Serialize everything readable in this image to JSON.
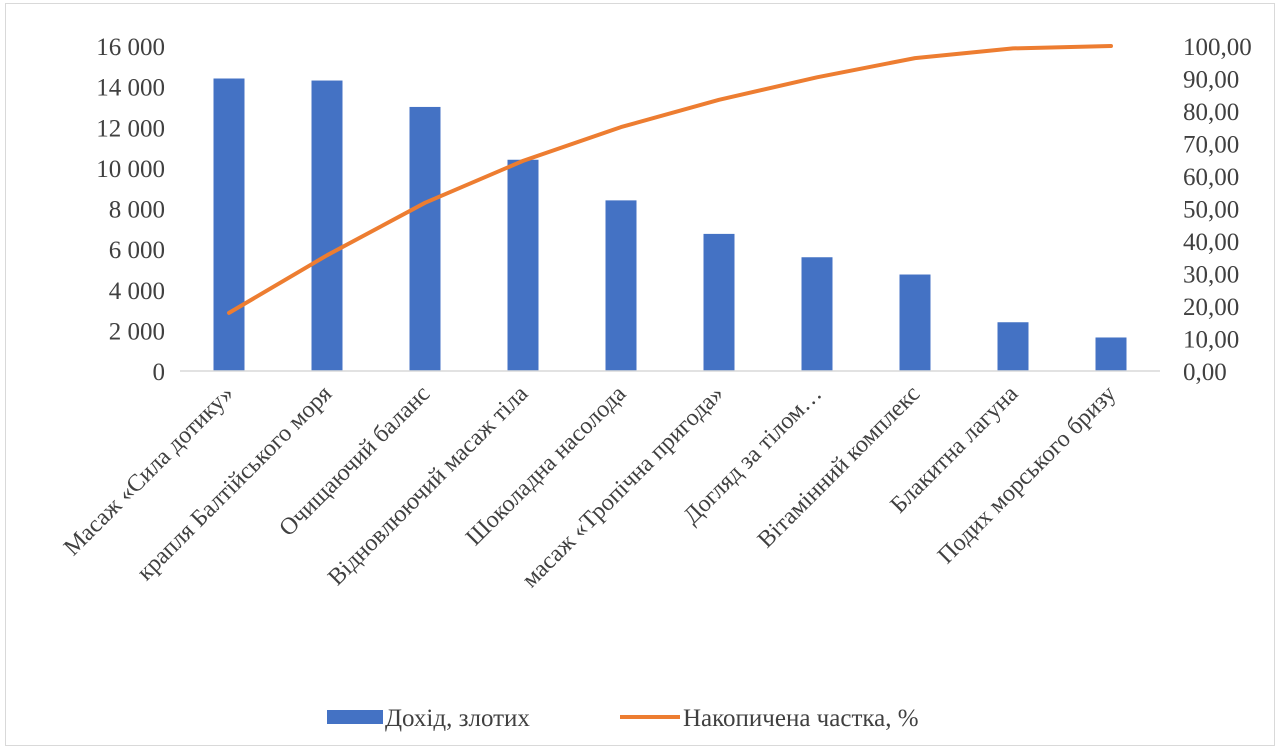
{
  "colors": {
    "bar": "#4472C4",
    "line": "#ED7D31",
    "gridline": "#d9d9d9",
    "text": "#404040"
  },
  "chart_data": {
    "type": "bar",
    "title": "",
    "xlabel": "",
    "ylabel": "",
    "categories": [
      "Масаж «Сила дотику»",
      "крапля Балтійського моря",
      "Очищаючий баланс",
      "Відновлюючий масаж тіла",
      "Шоколадна насолода",
      "масаж «Тропічна пригода»",
      "Догляд за тілом…",
      "Вітамінний комплекс",
      "Блакитна лагуна",
      "Подих морського бризу"
    ],
    "series": [
      {
        "name": "Дохід, злотих",
        "type": "bar",
        "axis": "left",
        "values": [
          14400,
          14300,
          13000,
          10400,
          8400,
          6750,
          5600,
          4750,
          2400,
          1650
        ]
      },
      {
        "name": "Накопичена частка, %",
        "type": "line",
        "axis": "right",
        "values": [
          17.87,
          35.61,
          51.74,
          64.64,
          75.06,
          83.44,
          90.38,
          96.28,
          99.26,
          100.0
        ]
      }
    ],
    "ylim": [
      0,
      16000
    ],
    "y2lim": [
      0,
      100
    ],
    "y_ticks": [
      "0",
      "2 000",
      "4 000",
      "6 000",
      "8 000",
      "10 000",
      "12 000",
      "14 000",
      "16 000"
    ],
    "y2_ticks": [
      "0,00",
      "10,00",
      "20,00",
      "30,00",
      "40,00",
      "50,00",
      "60,00",
      "70,00",
      "80,00",
      "90,00",
      "100,00"
    ],
    "grid": false,
    "legend": "bottom"
  }
}
